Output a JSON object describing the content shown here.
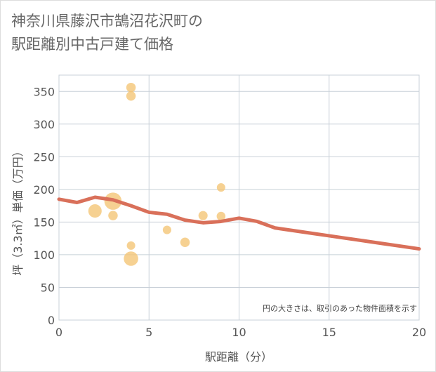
{
  "chart_data": {
    "type": "scatter",
    "title": "神奈川県藤沢市鵠沼花沢町の\n駅距離別中古戸建て価格",
    "xlabel": "駅距離（分）",
    "ylabel": "坪（3.3㎡）単価（万円）",
    "xlim": [
      0,
      20
    ],
    "ylim": [
      0,
      375
    ],
    "x_ticks": [
      0,
      5,
      10,
      15,
      20
    ],
    "y_ticks": [
      0,
      50,
      100,
      150,
      200,
      250,
      300,
      350
    ],
    "note": "円の大きさは、取引のあった物件面積を示す",
    "colors": {
      "bubble": "#f3c473",
      "trend": "#d9705a",
      "grid": "#c8d0d8"
    },
    "bubbles": [
      {
        "x": 2,
        "y": 167,
        "size": 3.0
      },
      {
        "x": 3,
        "y": 182,
        "size": 5.0
      },
      {
        "x": 3,
        "y": 160,
        "size": 1.5
      },
      {
        "x": 4,
        "y": 356,
        "size": 1.5
      },
      {
        "x": 4,
        "y": 343,
        "size": 1.5
      },
      {
        "x": 4,
        "y": 114,
        "size": 1.2
      },
      {
        "x": 4,
        "y": 94,
        "size": 3.5
      },
      {
        "x": 6,
        "y": 138,
        "size": 1.2
      },
      {
        "x": 7,
        "y": 119,
        "size": 1.5
      },
      {
        "x": 8,
        "y": 160,
        "size": 1.4
      },
      {
        "x": 9,
        "y": 203,
        "size": 1.2
      },
      {
        "x": 9,
        "y": 159,
        "size": 1.3
      }
    ],
    "trend": {
      "x": [
        0,
        1,
        2,
        3,
        4,
        5,
        6,
        7,
        8,
        9,
        10,
        11,
        12,
        13,
        14,
        15,
        16,
        17,
        18,
        19,
        20
      ],
      "y": [
        185,
        180,
        188,
        184,
        175,
        165,
        162,
        153,
        149,
        151,
        156,
        151,
        141,
        137,
        133,
        129,
        125,
        121,
        117,
        113,
        109
      ]
    }
  }
}
